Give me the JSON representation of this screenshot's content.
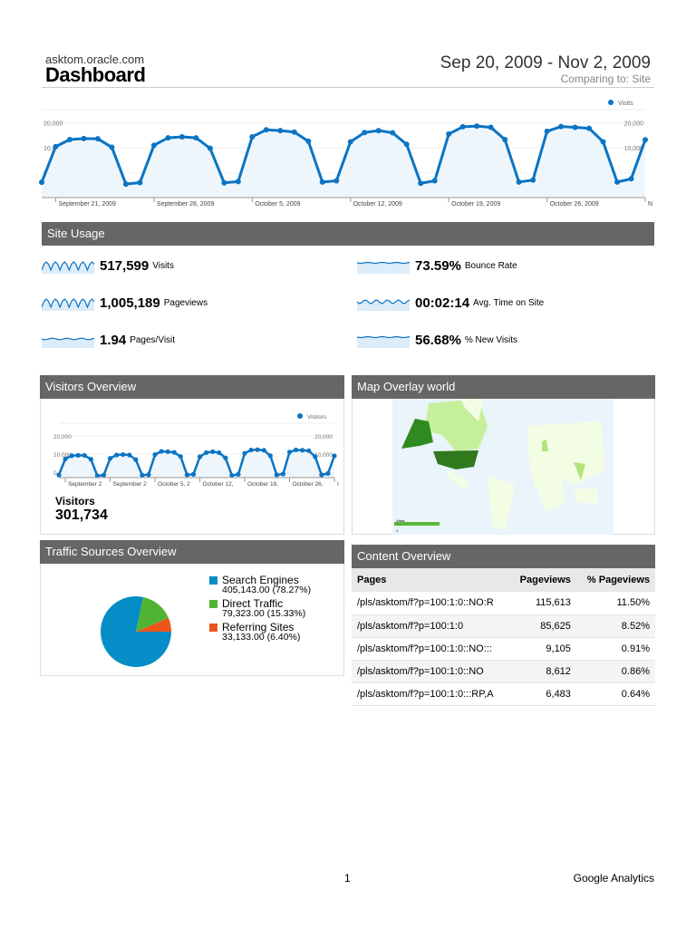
{
  "header": {
    "site": "asktom.oracle.com",
    "title": "Dashboard",
    "date_range": "Sep 20, 2009 - Nov 2, 2009",
    "comparing": "Comparing to: Site"
  },
  "chart_data": [
    {
      "type": "line",
      "name": "Visits",
      "legend": "Visits",
      "legend_position": "top-right",
      "y_ticks": [
        "0",
        "10,000",
        "20,000"
      ],
      "ylim": [
        -7000,
        22000
      ],
      "x_ticks": [
        "September 21, 2009",
        "September 28, 2009",
        "October 5, 2009",
        "October 12, 2009",
        "October 19, 2009",
        "October 26, 2009",
        "N"
      ],
      "values": [
        -3800,
        10500,
        13300,
        13700,
        13600,
        10200,
        -4500,
        -3900,
        11000,
        14000,
        14400,
        14000,
        9800,
        -4000,
        -3500,
        14400,
        17200,
        16900,
        16300,
        12600,
        -3700,
        -3200,
        12400,
        16100,
        16900,
        16000,
        11400,
        -4200,
        -3200,
        15500,
        18400,
        18700,
        18200,
        13300,
        -3700,
        -2900,
        16600,
        18500,
        18200,
        17800,
        12400,
        -3700,
        -2400,
        13200
      ]
    },
    {
      "type": "line",
      "name": "Visitors",
      "legend": "Visitors",
      "legend_position": "top-right",
      "y_ticks": [
        "0",
        "10,000",
        "20,000"
      ],
      "ylim": [
        -7000,
        22000
      ],
      "x_ticks": [
        "September 2",
        "September 2",
        "October 5, 2",
        "October 12,",
        "October 19,",
        "October 26,",
        "I"
      ]
    },
    {
      "type": "pie",
      "name": "Traffic Sources",
      "slices": [
        {
          "label": "Search Engines",
          "value": 405143,
          "pct": 78.27,
          "color": "#058dc7",
          "text": "405,143.00 (78.27%)"
        },
        {
          "label": "Direct Traffic",
          "value": 79323,
          "pct": 15.33,
          "color": "#50b432",
          "text": "79,323.00 (15.33%)"
        },
        {
          "label": "Referring Sites",
          "value": 33133,
          "pct": 6.4,
          "color": "#ed561b",
          "text": "33,133.00 (6.40%)"
        }
      ]
    }
  ],
  "site_usage": {
    "title": "Site Usage",
    "metrics": [
      {
        "value": "517,599",
        "label": "Visits"
      },
      {
        "value": "73.59%",
        "label": "Bounce Rate"
      },
      {
        "value": "1,005,189",
        "label": "Pageviews"
      },
      {
        "value": "00:02:14",
        "label": "Avg. Time on Site"
      },
      {
        "value": "1.94",
        "label": "Pages/Visit"
      },
      {
        "value": "56.68%",
        "label": "% New Visits"
      }
    ]
  },
  "visitors": {
    "title": "Visitors Overview",
    "label": "Visitors",
    "value": "301,734"
  },
  "map": {
    "title": "Map Overlay world",
    "legend_title": "Visits",
    "legend_min": "1"
  },
  "traffic": {
    "title": "Traffic Sources Overview"
  },
  "content": {
    "title": "Content Overview",
    "headers": [
      "Pages",
      "Pageviews",
      "% Pageviews"
    ],
    "rows": [
      [
        "/pls/asktom/f?p=100:1:0::NO:R",
        "115,613",
        "11.50%"
      ],
      [
        "/pls/asktom/f?p=100:1:0",
        "85,625",
        "8.52%"
      ],
      [
        "/pls/asktom/f?p=100:1:0::NO:::",
        "9,105",
        "0.91%"
      ],
      [
        "/pls/asktom/f?p=100:1:0::NO",
        "8,612",
        "0.86%"
      ],
      [
        "/pls/asktom/f?p=100:1:0:::RP,A",
        "6,483",
        "0.64%"
      ]
    ]
  },
  "footer": {
    "page": "1",
    "brand": "Google Analytics"
  },
  "colors": {
    "line": "#0b74c4",
    "header": "#666666"
  }
}
